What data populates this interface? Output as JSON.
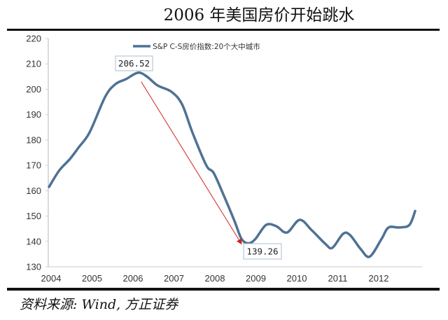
{
  "title": "2006 年美国房价开始跳水",
  "source": "资料来源: Wind, 方正证券",
  "chart_data": {
    "type": "line",
    "title": "2006 年美国房价开始跳水",
    "xlabel": "",
    "ylabel": "",
    "xlim": [
      2003.95,
      2013.1
    ],
    "ylim": [
      130,
      220
    ],
    "yticks": [
      130,
      140,
      150,
      160,
      170,
      180,
      190,
      200,
      210,
      220
    ],
    "xticks": [
      2004,
      2005,
      2006,
      2007,
      2008,
      2009,
      2010,
      2011,
      2012
    ],
    "grid": false,
    "legend_position": "top-center",
    "series": [
      {
        "name": "S&P C-S房价指数:20个大中城市",
        "color": "#4f7294",
        "x": [
          2003.95,
          2004.2,
          2004.46,
          2004.67,
          2004.94,
          2005.32,
          2005.57,
          2005.83,
          2006.12,
          2006.34,
          2006.6,
          2006.94,
          2007.2,
          2007.45,
          2007.79,
          2007.97,
          2008.22,
          2008.48,
          2008.65,
          2008.82,
          2008.99,
          2009.25,
          2009.5,
          2009.76,
          2010.07,
          2010.36,
          2010.7,
          2010.87,
          2011.13,
          2011.3,
          2011.56,
          2011.78,
          2012.07,
          2012.24,
          2012.5,
          2012.75,
          2012.89
        ],
        "values": [
          161.5,
          168,
          172.5,
          177,
          183,
          197,
          202,
          204,
          206.52,
          205,
          201.5,
          199,
          194,
          183,
          170,
          167,
          158,
          148,
          141,
          139.26,
          141,
          146.5,
          146,
          143.5,
          148.5,
          144.5,
          139,
          137.5,
          143,
          142.5,
          137,
          134,
          141,
          145.5,
          145.5,
          146.5,
          152
        ]
      }
    ],
    "annotations": [
      {
        "label": "206.52",
        "x": 2006.12,
        "y": 206.52
      },
      {
        "label": "139.26",
        "x": 2008.82,
        "y": 139.26
      }
    ],
    "arrow": {
      "from": [
        2006.2,
        203
      ],
      "to": [
        2008.65,
        139
      ],
      "color": "#d42020"
    }
  }
}
